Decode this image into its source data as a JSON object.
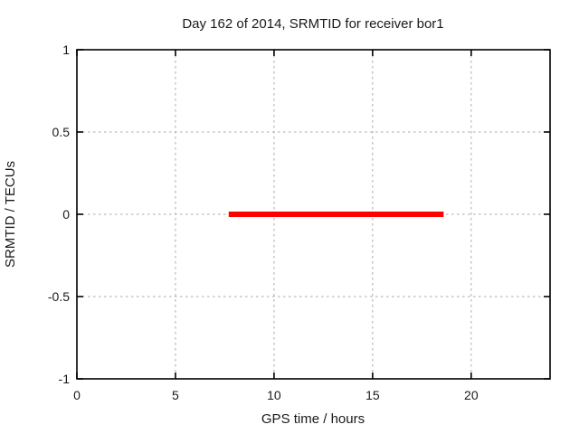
{
  "figure": {
    "background": "#ffffff"
  },
  "colors": {
    "axis": "#000000",
    "grid": "#a8a8a8",
    "text": "#1a1a1a",
    "series_red": "#ff0000",
    "background": "#ffffff"
  },
  "chart_data": {
    "type": "line",
    "title": "Day 162 of 2014, SRMTID for receiver bor1",
    "xlabel": "GPS time / hours",
    "ylabel": "SRMTID / TECUs",
    "xlim": [
      0,
      24
    ],
    "ylim": [
      -1,
      1
    ],
    "xticks": [
      0,
      5,
      10,
      15,
      20
    ],
    "xtick_labels": [
      "0",
      "5",
      "10",
      "15",
      "20"
    ],
    "yticks": [
      -1,
      -0.5,
      0,
      0.5,
      1
    ],
    "ytick_labels": [
      "-1",
      "-0.5",
      "0",
      "0.5",
      "1"
    ],
    "grid": true,
    "grid_style": "dashed",
    "legend": "none",
    "series": [
      {
        "name": "SRMTID",
        "color": "#ff0000",
        "linewidth": 6,
        "x": [
          7.7,
          18.6
        ],
        "y": [
          0,
          0
        ]
      }
    ]
  }
}
